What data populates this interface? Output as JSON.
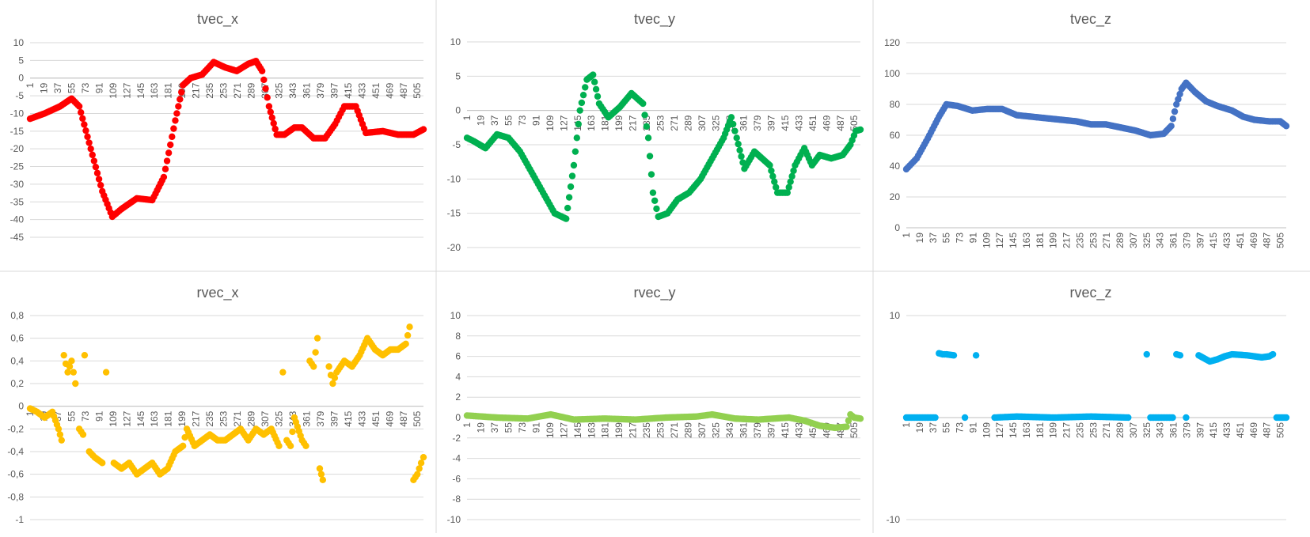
{
  "chart_data": [
    {
      "type": "scatter",
      "title": "tvec_x",
      "ylim": [
        -45,
        10
      ],
      "yticks": [
        "10",
        "5",
        "0",
        "-5",
        "-10",
        "-15",
        "-20",
        "-25",
        "-30",
        "-35",
        "-40",
        "-45"
      ],
      "xticks": [
        "1",
        "19",
        "37",
        "55",
        "73",
        "91",
        "109",
        "127",
        "145",
        "163",
        "181",
        "199",
        "217",
        "235",
        "253",
        "271",
        "289",
        "307",
        "325",
        "343",
        "361",
        "379",
        "397",
        "415",
        "433",
        "451",
        "469",
        "487",
        "505"
      ],
      "xrange": [
        1,
        513
      ],
      "x_axis_at": 0,
      "color": "#ff0000",
      "grid": true,
      "legend": "none",
      "points": [
        [
          1,
          -11.5
        ],
        [
          20,
          -10
        ],
        [
          40,
          -8
        ],
        [
          55,
          -5.8
        ],
        [
          65,
          -8
        ],
        [
          80,
          -20
        ],
        [
          95,
          -32
        ],
        [
          108,
          -39.2
        ],
        [
          120,
          -37
        ],
        [
          140,
          -34
        ],
        [
          160,
          -34.5
        ],
        [
          175,
          -28
        ],
        [
          190,
          -12
        ],
        [
          200,
          -2
        ],
        [
          210,
          0
        ],
        [
          225,
          1
        ],
        [
          240,
          4.5
        ],
        [
          255,
          3
        ],
        [
          270,
          2
        ],
        [
          285,
          4
        ],
        [
          295,
          4.8
        ],
        [
          303,
          2
        ],
        [
          312,
          -8
        ],
        [
          322,
          -16
        ],
        [
          332,
          -16
        ],
        [
          345,
          -14
        ],
        [
          355,
          -14
        ],
        [
          370,
          -17
        ],
        [
          385,
          -17
        ],
        [
          398,
          -13
        ],
        [
          410,
          -8
        ],
        [
          425,
          -8
        ],
        [
          438,
          -15.5
        ],
        [
          460,
          -15
        ],
        [
          480,
          -16
        ],
        [
          500,
          -16
        ],
        [
          513,
          -14.5
        ]
      ]
    },
    {
      "type": "scatter",
      "title": "tvec_y",
      "ylim": [
        -20,
        10
      ],
      "yticks": [
        "10",
        "5",
        "0",
        "-5",
        "-10",
        "-15",
        "-20"
      ],
      "xticks": [
        "1",
        "19",
        "37",
        "55",
        "73",
        "91",
        "109",
        "127",
        "145",
        "163",
        "181",
        "199",
        "217",
        "235",
        "253",
        "271",
        "289",
        "307",
        "325",
        "343",
        "361",
        "379",
        "397",
        "415",
        "433",
        "451",
        "469",
        "487",
        "505"
      ],
      "xrange": [
        1,
        513
      ],
      "x_axis_at": 0,
      "color": "#00b050",
      "grid": true,
      "legend": "none",
      "points": [
        [
          1,
          -4
        ],
        [
          10,
          -4.5
        ],
        [
          25,
          -5.5
        ],
        [
          40,
          -3.5
        ],
        [
          55,
          -4
        ],
        [
          70,
          -6
        ],
        [
          85,
          -9
        ],
        [
          100,
          -12
        ],
        [
          115,
          -15
        ],
        [
          130,
          -15.8
        ],
        [
          140,
          -8
        ],
        [
          148,
          0
        ],
        [
          157,
          4.5
        ],
        [
          165,
          5.2
        ],
        [
          173,
          1
        ],
        [
          185,
          -1
        ],
        [
          200,
          0.5
        ],
        [
          215,
          2.5
        ],
        [
          230,
          1
        ],
        [
          237,
          -4
        ],
        [
          243,
          -12
        ],
        [
          250,
          -15.5
        ],
        [
          262,
          -15
        ],
        [
          275,
          -13
        ],
        [
          290,
          -12
        ],
        [
          305,
          -10
        ],
        [
          320,
          -7
        ],
        [
          335,
          -4
        ],
        [
          345,
          -1
        ],
        [
          352,
          -4
        ],
        [
          362,
          -8.5
        ],
        [
          375,
          -6
        ],
        [
          385,
          -7
        ],
        [
          395,
          -8
        ],
        [
          405,
          -12
        ],
        [
          418,
          -12
        ],
        [
          428,
          -8
        ],
        [
          440,
          -5.5
        ],
        [
          450,
          -8
        ],
        [
          460,
          -6.5
        ],
        [
          475,
          -7
        ],
        [
          490,
          -6.5
        ],
        [
          500,
          -5
        ],
        [
          507,
          -3
        ],
        [
          513,
          -2.8
        ]
      ]
    },
    {
      "type": "scatter",
      "title": "tvec_z",
      "ylim": [
        0,
        120
      ],
      "yticks": [
        "120",
        "100",
        "80",
        "60",
        "40",
        "20",
        "0"
      ],
      "xticks": [
        "1",
        "19",
        "37",
        "55",
        "73",
        "91",
        "109",
        "127",
        "145",
        "163",
        "181",
        "199",
        "217",
        "235",
        "253",
        "271",
        "289",
        "307",
        "325",
        "343",
        "361",
        "379",
        "397",
        "415",
        "433",
        "451",
        "469",
        "487",
        "505"
      ],
      "xrange": [
        1,
        513
      ],
      "x_axis_at": 0,
      "color": "#4472c4",
      "grid": true,
      "legend": "none",
      "points": [
        [
          1,
          38
        ],
        [
          15,
          45
        ],
        [
          30,
          58
        ],
        [
          45,
          72
        ],
        [
          55,
          80
        ],
        [
          70,
          79
        ],
        [
          90,
          76
        ],
        [
          110,
          77
        ],
        [
          130,
          77
        ],
        [
          150,
          73
        ],
        [
          170,
          72
        ],
        [
          190,
          71
        ],
        [
          210,
          70
        ],
        [
          230,
          69
        ],
        [
          250,
          67
        ],
        [
          270,
          67
        ],
        [
          290,
          65
        ],
        [
          310,
          63
        ],
        [
          330,
          60
        ],
        [
          348,
          61
        ],
        [
          358,
          66
        ],
        [
          365,
          80
        ],
        [
          372,
          90
        ],
        [
          378,
          94
        ],
        [
          390,
          88
        ],
        [
          405,
          82
        ],
        [
          420,
          79
        ],
        [
          440,
          76
        ],
        [
          455,
          72
        ],
        [
          470,
          70
        ],
        [
          490,
          69
        ],
        [
          505,
          69
        ],
        [
          513,
          66
        ]
      ]
    },
    {
      "type": "scatter",
      "title": "rvec_x",
      "ylim": [
        -1,
        0.8
      ],
      "yticks": [
        "0,8",
        "0,6",
        "0,4",
        "0,2",
        "0",
        "-0,2",
        "-0,4",
        "-0,6",
        "-0,8",
        "-1"
      ],
      "xticks": [
        "1",
        "19",
        "37",
        "55",
        "73",
        "91",
        "109",
        "127",
        "145",
        "163",
        "181",
        "199",
        "217",
        "235",
        "253",
        "271",
        "289",
        "307",
        "325",
        "343",
        "361",
        "379",
        "397",
        "415",
        "433",
        "451",
        "469",
        "487",
        "505"
      ],
      "xrange": [
        1,
        513
      ],
      "x_axis_at": 0,
      "color": "#ffc000",
      "grid": true,
      "legend": "none",
      "points": [
        [
          1,
          -0.02
        ],
        [
          10,
          -0.05
        ],
        [
          20,
          -0.1
        ],
        [
          30,
          -0.05
        ],
        [
          38,
          -0.2
        ],
        [
          42,
          -0.3
        ],
        [
          45,
          0.45
        ],
        [
          50,
          0.3
        ],
        [
          55,
          0.4
        ],
        [
          60,
          0.2
        ],
        [
          65,
          -0.2
        ],
        [
          70,
          -0.25
        ],
        [
          72,
          0.45
        ],
        [
          78,
          -0.4
        ],
        [
          85,
          -0.45
        ],
        [
          95,
          -0.5
        ],
        [
          100,
          0.3
        ],
        [
          110,
          -0.5
        ],
        [
          120,
          -0.55
        ],
        [
          130,
          -0.5
        ],
        [
          140,
          -0.6
        ],
        [
          150,
          -0.55
        ],
        [
          160,
          -0.5
        ],
        [
          170,
          -0.6
        ],
        [
          180,
          -0.55
        ],
        [
          190,
          -0.4
        ],
        [
          200,
          -0.35
        ],
        [
          205,
          -0.2
        ],
        [
          215,
          -0.35
        ],
        [
          225,
          -0.3
        ],
        [
          235,
          -0.25
        ],
        [
          245,
          -0.3
        ],
        [
          255,
          -0.3
        ],
        [
          265,
          -0.25
        ],
        [
          275,
          -0.2
        ],
        [
          285,
          -0.3
        ],
        [
          295,
          -0.2
        ],
        [
          305,
          -0.25
        ],
        [
          315,
          -0.2
        ],
        [
          325,
          -0.35
        ],
        [
          330,
          0.3
        ],
        [
          335,
          -0.3
        ],
        [
          340,
          -0.35
        ],
        [
          345,
          -0.1
        ],
        [
          355,
          -0.3
        ],
        [
          360,
          -0.35
        ],
        [
          365,
          0.4
        ],
        [
          370,
          0.35
        ],
        [
          375,
          0.6
        ],
        [
          378,
          -0.55
        ],
        [
          382,
          -0.65
        ],
        [
          390,
          0.35
        ],
        [
          395,
          0.2
        ],
        [
          400,
          0.3
        ],
        [
          410,
          0.4
        ],
        [
          420,
          0.35
        ],
        [
          430,
          0.45
        ],
        [
          440,
          0.6
        ],
        [
          450,
          0.5
        ],
        [
          460,
          0.45
        ],
        [
          470,
          0.5
        ],
        [
          480,
          0.5
        ],
        [
          490,
          0.55
        ],
        [
          495,
          0.7
        ],
        [
          500,
          -0.65
        ],
        [
          505,
          -0.6
        ],
        [
          510,
          -0.5
        ],
        [
          513,
          -0.45
        ]
      ]
    },
    {
      "type": "scatter",
      "title": "rvec_y",
      "ylim": [
        -10,
        10
      ],
      "yticks": [
        "10",
        "8",
        "6",
        "4",
        "2",
        "0",
        "-2",
        "-4",
        "-6",
        "-8",
        "-10"
      ],
      "xticks": [
        "1",
        "19",
        "37",
        "55",
        "73",
        "91",
        "109",
        "127",
        "145",
        "163",
        "181",
        "199",
        "217",
        "235",
        "253",
        "271",
        "289",
        "307",
        "325",
        "343",
        "361",
        "379",
        "397",
        "415",
        "433",
        "451",
        "469",
        "487",
        "505"
      ],
      "xrange": [
        1,
        513
      ],
      "x_axis_at": 0,
      "color": "#92d050",
      "grid": true,
      "legend": "none",
      "points": [
        [
          1,
          0.2
        ],
        [
          40,
          0
        ],
        [
          80,
          -0.1
        ],
        [
          110,
          0.3
        ],
        [
          140,
          -0.2
        ],
        [
          180,
          -0.1
        ],
        [
          220,
          -0.2
        ],
        [
          260,
          0
        ],
        [
          300,
          0.1
        ],
        [
          320,
          0.3
        ],
        [
          350,
          -0.1
        ],
        [
          380,
          -0.2
        ],
        [
          420,
          0
        ],
        [
          440,
          -0.3
        ],
        [
          460,
          -0.8
        ],
        [
          480,
          -1
        ],
        [
          495,
          -0.9
        ],
        [
          500,
          0.3
        ],
        [
          505,
          0
        ],
        [
          513,
          -0.1
        ]
      ]
    },
    {
      "type": "scatter",
      "title": "rvec_z",
      "ylim": [
        -10,
        10
      ],
      "yticks": [
        "10",
        "-10"
      ],
      "xticks": [
        "1",
        "19",
        "37",
        "55",
        "73",
        "91",
        "109",
        "127",
        "145",
        "163",
        "181",
        "199",
        "217",
        "235",
        "253",
        "271",
        "289",
        "307",
        "325",
        "343",
        "361",
        "379",
        "397",
        "415",
        "433",
        "451",
        "469",
        "487",
        "505"
      ],
      "xrange": [
        1,
        513
      ],
      "x_axis_at": 0,
      "color": "#00b0f0",
      "grid": true,
      "legend": "none",
      "points": [
        [
          1,
          0
        ],
        [
          40,
          0
        ],
        [
          45,
          6.3
        ],
        [
          50,
          6.2
        ],
        [
          55,
          6.2
        ],
        [
          65,
          6.1
        ],
        [
          80,
          0
        ],
        [
          95,
          6.1
        ],
        [
          120,
          0
        ],
        [
          150,
          0.1
        ],
        [
          200,
          0
        ],
        [
          250,
          0.1
        ],
        [
          300,
          0
        ],
        [
          325,
          6.2
        ],
        [
          330,
          0
        ],
        [
          360,
          0
        ],
        [
          365,
          6.2
        ],
        [
          370,
          6.1
        ],
        [
          378,
          0
        ],
        [
          395,
          6.1
        ],
        [
          405,
          5.7
        ],
        [
          410,
          5.5
        ],
        [
          420,
          5.7
        ],
        [
          430,
          6.0
        ],
        [
          440,
          6.2
        ],
        [
          460,
          6.1
        ],
        [
          470,
          6
        ],
        [
          480,
          5.9
        ],
        [
          490,
          6
        ],
        [
          495,
          6.2
        ],
        [
          500,
          0
        ],
        [
          513,
          0
        ]
      ]
    }
  ]
}
